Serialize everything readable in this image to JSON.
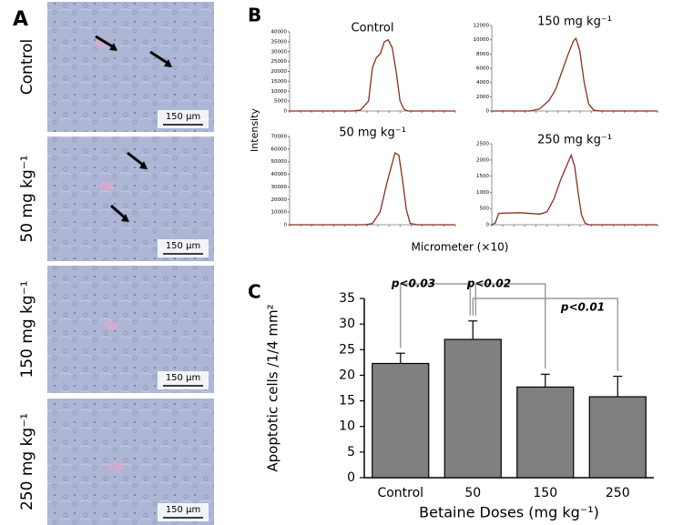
{
  "panels": {
    "a": "A",
    "b": "B",
    "c": "C"
  },
  "images": [
    {
      "label": "Control",
      "scale": "150 µm"
    },
    {
      "label": "50 mg kg⁻¹",
      "scale": "150 µm"
    },
    {
      "label": "150 mg kg⁻¹",
      "scale": "150 µm"
    },
    {
      "label": "250 mg kg⁻¹",
      "scale": "150 µm"
    }
  ],
  "profile_labels": {
    "ylabel": "Intensity",
    "xlabel": "Micrometer (×10)"
  },
  "chart_data": [
    {
      "type": "line",
      "title": "Control",
      "color": "#8b2e1e",
      "x": [
        0,
        80,
        90,
        100,
        105,
        110,
        115,
        120,
        125,
        130,
        135,
        140,
        145,
        150,
        210
      ],
      "values": [
        0,
        0,
        500,
        5000,
        22000,
        27000,
        29000,
        35000,
        36000,
        32000,
        20000,
        5000,
        800,
        0,
        0
      ],
      "xlim": [
        0,
        210
      ],
      "ylim": [
        0,
        40000
      ],
      "yticks": [
        0,
        5000,
        10000,
        15000,
        20000,
        25000,
        30000,
        35000,
        40000
      ]
    },
    {
      "type": "line",
      "title": "150 mg kg⁻¹",
      "color": "#8b2e1e",
      "x": [
        0,
        60,
        75,
        90,
        100,
        110,
        120,
        128,
        132,
        138,
        145,
        152,
        160,
        170,
        260
      ],
      "values": [
        0,
        0,
        300,
        1500,
        3000,
        5500,
        8000,
        9800,
        10200,
        8500,
        4000,
        1000,
        100,
        0,
        0
      ],
      "xlim": [
        0,
        260
      ],
      "ylim": [
        0,
        12000
      ],
      "yticks": [
        0,
        2000,
        4000,
        6000,
        8000,
        10000,
        12000
      ]
    },
    {
      "type": "line",
      "title": "50 mg kg⁻¹",
      "color": "#8b2e1e",
      "x": [
        0,
        100,
        110,
        120,
        130,
        140,
        145,
        150,
        155,
        160,
        170,
        220
      ],
      "values": [
        0,
        0,
        1000,
        10000,
        35000,
        57000,
        55000,
        35000,
        12000,
        1000,
        0,
        0
      ],
      "xlim": [
        0,
        220
      ],
      "ylim": [
        0,
        70000
      ],
      "yticks": [
        0,
        10000,
        20000,
        30000,
        40000,
        50000,
        60000,
        70000
      ]
    },
    {
      "type": "line",
      "title": "250 mg kg⁻¹",
      "color": "#8b2e1e",
      "x": [
        0,
        5,
        10,
        40,
        70,
        80,
        90,
        100,
        110,
        115,
        120,
        125,
        130,
        135,
        140,
        240
      ],
      "values": [
        0,
        50,
        350,
        370,
        330,
        400,
        800,
        1400,
        1900,
        2150,
        1800,
        1000,
        300,
        50,
        0,
        0
      ],
      "xlim": [
        0,
        240
      ],
      "ylim": [
        0,
        2500
      ],
      "yticks": [
        0,
        500,
        1000,
        1500,
        2000,
        2500
      ]
    },
    {
      "type": "bar",
      "categories": [
        "Control",
        "50",
        "150",
        "250"
      ],
      "values": [
        22.3,
        27,
        17.7,
        15.8
      ],
      "errors": [
        2,
        3.6,
        2.5,
        4
      ],
      "color": "#808080",
      "ylim": [
        0,
        35
      ],
      "yticks": [
        0,
        5,
        10,
        15,
        20,
        25,
        30,
        35
      ],
      "ylabel": "Apoptotic cells /1/4 mm²",
      "xlabel": "Betaine Doses (mg kg⁻¹)",
      "annotations": [
        "p<0.03",
        "p<0.02",
        "p<0.01"
      ]
    }
  ]
}
